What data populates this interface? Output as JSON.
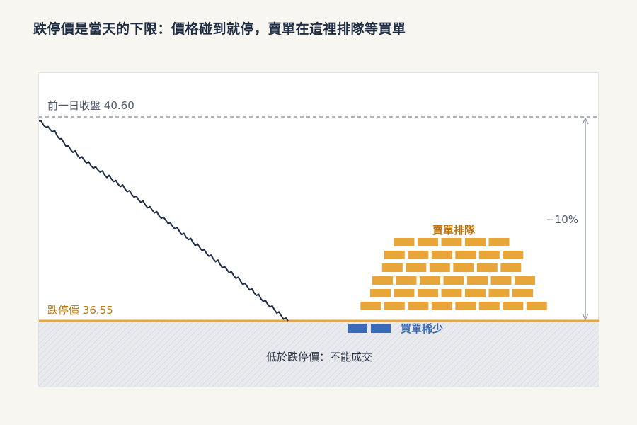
{
  "title": "跌停價是當天的下限：價格碰到就停，賣單在這裡排隊等買單",
  "colors": {
    "background": "#f7f6f1",
    "panel": "#ffffff",
    "price_line": "#1f2d44",
    "limit_down": "#e8a53a",
    "limit_down_label": "#b8740f",
    "sell_orders": "#e8a53a",
    "buy_orders": "#3a6ab7",
    "reference": "#7a8391",
    "below_zone": "#e9eaee"
  },
  "chart_data": {
    "type": "line",
    "prev_close": {
      "label": "前一日收盤",
      "value": "40.60"
    },
    "limit_down": {
      "label": "跌停價",
      "value": "36.55"
    },
    "percent_change": "−10%",
    "sell_queue_label": "賣單排隊",
    "buy_queue_label": "買單稀少",
    "below_zone_label": "低於跌停價：不能成交",
    "ylim": [
      36.55,
      40.6
    ],
    "sell_rows": [
      8,
      7,
      7,
      6,
      6,
      5
    ],
    "buy_blocks": 2,
    "price_series": [
      40.52,
      40.49,
      40.45,
      40.43,
      40.38,
      40.36,
      40.34,
      40.3,
      40.24,
      40.2,
      40.14,
      40.1,
      40.05,
      40.0,
      39.96,
      39.93,
      39.9,
      39.85,
      39.82,
      39.78,
      39.75,
      39.72,
      39.68,
      39.64,
      39.62,
      39.58,
      39.56,
      39.54,
      39.5,
      39.46,
      39.43,
      39.41,
      39.38,
      39.35,
      39.31,
      39.27,
      39.25,
      39.22,
      39.18,
      39.15,
      39.11,
      39.07,
      39.04,
      39.0,
      38.96,
      38.94,
      38.9,
      38.86,
      38.83,
      38.79,
      38.76,
      38.73,
      38.69,
      38.65,
      38.62,
      38.58,
      38.56,
      38.52,
      38.47,
      38.44,
      38.41,
      38.38,
      38.34,
      38.3,
      38.26,
      38.22,
      38.2,
      38.16,
      38.12,
      38.08,
      38.05,
      38.02,
      37.98,
      37.94,
      37.9,
      37.87,
      37.83,
      37.79,
      37.76,
      37.73,
      37.68,
      37.64,
      37.6,
      37.58,
      37.54,
      37.5,
      37.46,
      37.43,
      37.39,
      37.35,
      37.31,
      37.27,
      37.24,
      37.2,
      37.16,
      37.12,
      37.09,
      37.05,
      37.0,
      36.97,
      36.93,
      36.89,
      36.86,
      36.82,
      36.78,
      36.74,
      36.7,
      36.66,
      36.62,
      36.58,
      36.55
    ]
  }
}
